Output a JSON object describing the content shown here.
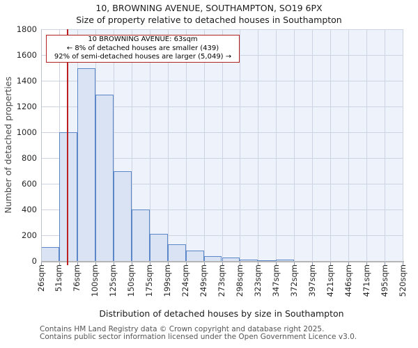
{
  "title": "10, BROWNING AVENUE, SOUTHAMPTON, SO19 6PX",
  "subtitle": "Size of property relative to detached houses in Southampton",
  "annotation": {
    "line1": "10 BROWNING AVENUE: 63sqm",
    "line2": "← 8% of detached houses are smaller (439)",
    "line3": "92% of semi-detached houses are larger (5,049) →"
  },
  "footer": {
    "line1": "Contains HM Land Registry data © Crown copyright and database right 2025.",
    "line2": "Contains public sector information licensed under the Open Government Licence v3.0."
  },
  "chart_data": {
    "type": "bar",
    "title": "Size of property relative to detached houses in Southampton",
    "xlabel": "Distribution of detached houses by size in Southampton",
    "ylabel": "Number of detached properties",
    "categories": [
      "26sqm",
      "51sqm",
      "76sqm",
      "100sqm",
      "125sqm",
      "150sqm",
      "175sqm",
      "199sqm",
      "224sqm",
      "249sqm",
      "273sqm",
      "298sqm",
      "323sqm",
      "347sqm",
      "372sqm",
      "397sqm",
      "421sqm",
      "446sqm",
      "471sqm",
      "495sqm",
      "520sqm"
    ],
    "values": [
      110,
      1000,
      1500,
      1290,
      700,
      400,
      210,
      130,
      80,
      40,
      28,
      12,
      6,
      10,
      0,
      0,
      0,
      0,
      0,
      0
    ],
    "y_ticks": [
      0,
      200,
      400,
      600,
      800,
      1000,
      1200,
      1400,
      1600,
      1800
    ],
    "ylim": [
      0,
      1800
    ],
    "grid": "on",
    "legend": "none",
    "marker": {
      "value_sqm": 63,
      "label": "10 BROWNING AVENUE: 63sqm",
      "smaller_pct": 8,
      "smaller_count": 439,
      "larger_pct": 92,
      "larger_count": 5049
    },
    "colors": {
      "bar_fill": "#d9e3f4",
      "bar_border": "#5b87c8",
      "marker_line": "#bb1f1f",
      "annotation_border": "#b22222",
      "highlight_bg": "#edf2fb",
      "grid": "#ccd4e2"
    }
  }
}
